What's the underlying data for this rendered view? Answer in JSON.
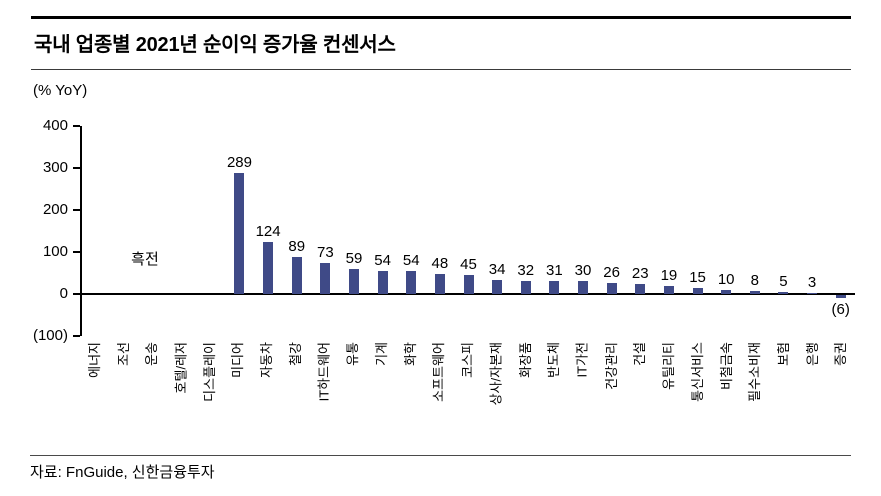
{
  "footer": {
    "source": "자료: FnGuide, 신한금융투자"
  },
  "chart_data": {
    "type": "bar",
    "title": "국내 업종별 2021년 순이익 증가율 컨센서스",
    "ylabel": "(% YoY)",
    "ylim": [
      -100,
      400
    ],
    "ytick_values": [
      400,
      300,
      200,
      100,
      0,
      -100
    ],
    "ytick_labels": [
      "400",
      "300",
      "200",
      "100",
      "0",
      "(100)"
    ],
    "grid": false,
    "legend": null,
    "bar_color": "#3F4A87",
    "categories": [
      "에너지",
      "조선",
      "운송",
      "호텔/레저",
      "디스플레이",
      "미디어",
      "자동차",
      "철강",
      "IT하드웨어",
      "유통",
      "기계",
      "화학",
      "소프트웨어",
      "코스피",
      "상사/자본재",
      "화장품",
      "반도체",
      "IT가전",
      "건강관리",
      "건설",
      "유틸리티",
      "통신서비스",
      "비철금속",
      "필수소비재",
      "보험",
      "은행",
      "증권"
    ],
    "values": [
      null,
      null,
      null,
      null,
      null,
      289,
      124,
      89,
      73,
      59,
      54,
      54,
      48,
      45,
      34,
      32,
      31,
      30,
      26,
      23,
      19,
      15,
      10,
      8,
      5,
      3,
      -6
    ],
    "value_labels": [
      "",
      "",
      "",
      "",
      "",
      "289",
      "124",
      "89",
      "73",
      "59",
      "54",
      "54",
      "48",
      "45",
      "34",
      "32",
      "31",
      "30",
      "26",
      "23",
      "19",
      "15",
      "10",
      "8",
      "5",
      "3",
      "(6)"
    ],
    "annotations": [
      {
        "text": "흑전",
        "x_center_category_index": 1.7,
        "y_value": 80
      }
    ]
  }
}
